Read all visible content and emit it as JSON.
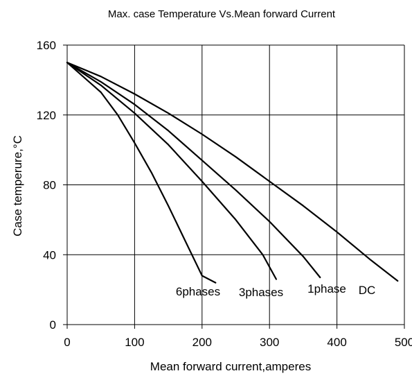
{
  "chart_data": {
    "type": "line",
    "title": "Max. case Temperature Vs.Mean forward Current",
    "xlabel": "Mean forward current,amperes",
    "ylabel": "Case temperure,°C",
    "xlim": [
      0,
      500
    ],
    "ylim": [
      0,
      160
    ],
    "xticks": [
      0,
      100,
      200,
      300,
      400,
      500
    ],
    "yticks": [
      0,
      40,
      80,
      120,
      160
    ],
    "xtick_labels": [
      "0",
      "100",
      "200",
      "300",
      "400",
      "500"
    ],
    "ytick_labels": [
      "0",
      "40",
      "80",
      "120",
      "160"
    ],
    "grid": true,
    "legend": "none",
    "series": [
      {
        "name": "DC",
        "x": [
          0,
          50,
          100,
          150,
          200,
          250,
          300,
          350,
          400,
          450,
          490
        ],
        "y": [
          150,
          142,
          132,
          121,
          109,
          96,
          82,
          68,
          53,
          37,
          25
        ]
      },
      {
        "name": "1phase",
        "x": [
          0,
          50,
          100,
          150,
          200,
          250,
          300,
          350,
          375
        ],
        "y": [
          150,
          139,
          126,
          111,
          94,
          77,
          59,
          39,
          27
        ]
      },
      {
        "name": "3phases",
        "x": [
          0,
          50,
          100,
          150,
          200,
          250,
          290,
          310
        ],
        "y": [
          150,
          137,
          121,
          103,
          82,
          60,
          40,
          26
        ]
      },
      {
        "name": "6phases",
        "x": [
          0,
          50,
          75,
          100,
          125,
          150,
          175,
          200,
          220
        ],
        "y": [
          150,
          133,
          120,
          104,
          87,
          68,
          48,
          28,
          24
        ]
      }
    ]
  }
}
